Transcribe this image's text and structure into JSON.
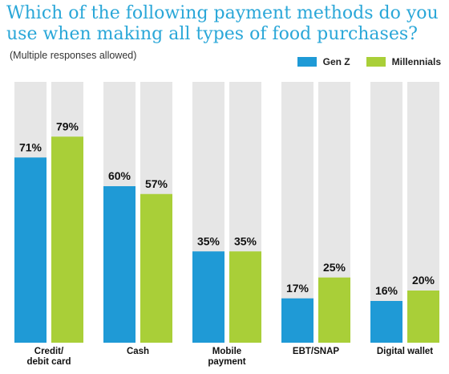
{
  "chart_data": {
    "type": "bar",
    "title": "Which of the following payment methods do you use when making all types of food purchases?",
    "subtitle": "(Multiple responses allowed)",
    "categories": [
      [
        "Credit/",
        "debit card"
      ],
      [
        "Cash"
      ],
      [
        "Mobile",
        "payment"
      ],
      [
        "EBT/SNAP"
      ],
      [
        "Digital wallet"
      ]
    ],
    "series": [
      {
        "name": "Gen Z",
        "color": "#1f9ad6",
        "values": [
          71,
          60,
          35,
          17,
          16
        ]
      },
      {
        "name": "Millennials",
        "color": "#a9cf38",
        "values": [
          79,
          57,
          35,
          25,
          20
        ]
      }
    ],
    "ylim": [
      0,
      100
    ],
    "value_suffix": "%",
    "background_bar_color": "#e6e6e6",
    "legend_position": "top-right",
    "grid": false
  }
}
